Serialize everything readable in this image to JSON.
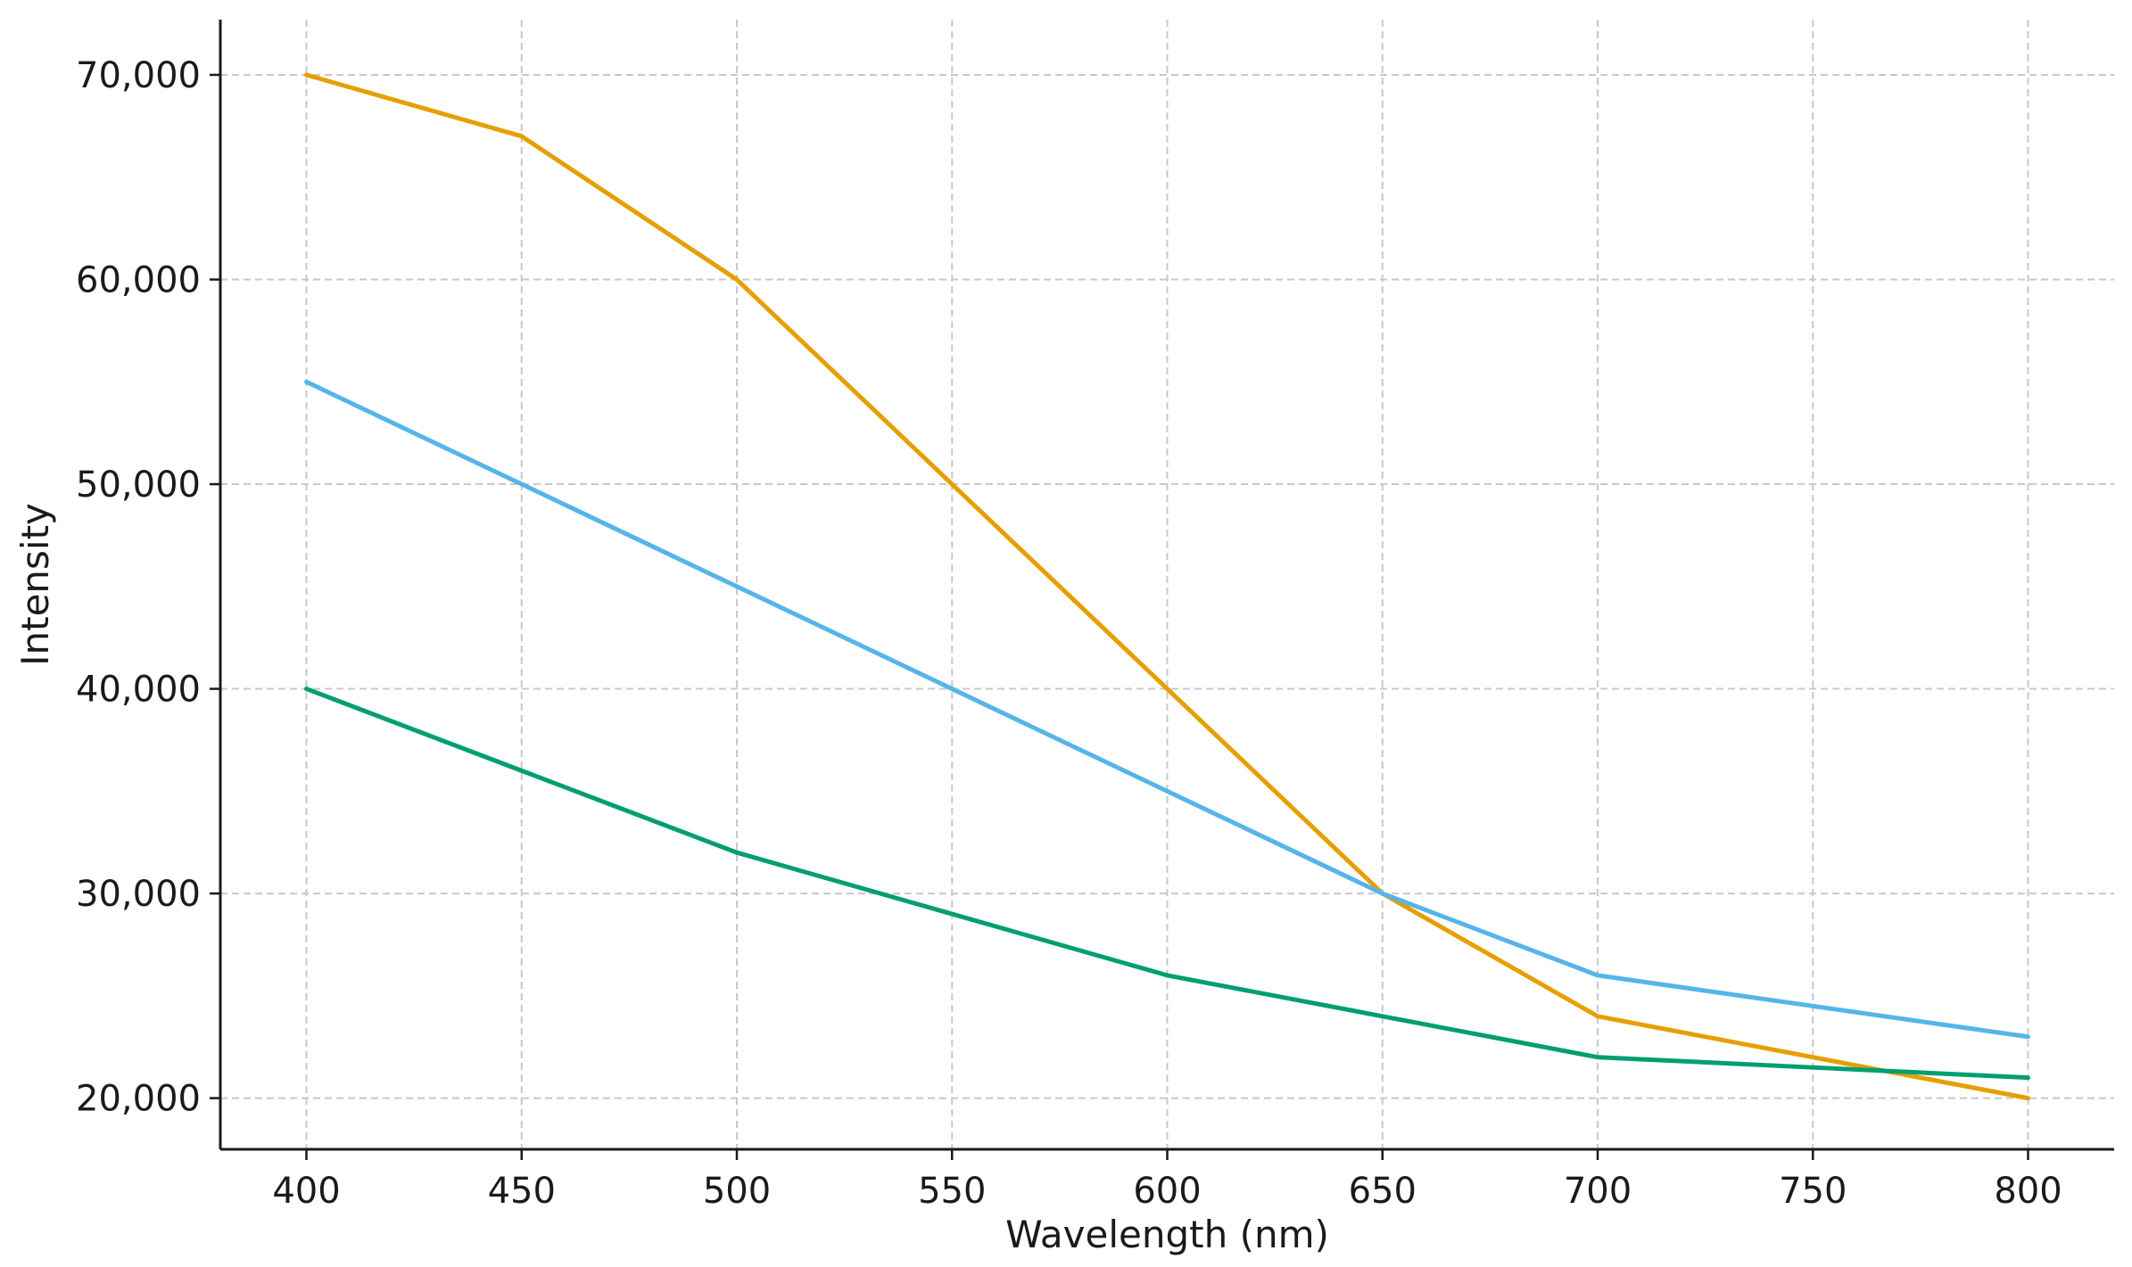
{
  "chart_data": {
    "type": "line",
    "title": "",
    "xlabel": "Wavelength (nm)",
    "ylabel": "Intensity",
    "x": [
      400,
      450,
      500,
      550,
      600,
      650,
      700,
      750,
      800
    ],
    "xlim": [
      380,
      820
    ],
    "ylim": [
      17500,
      72700
    ],
    "xticks": [
      400,
      450,
      500,
      550,
      600,
      650,
      700,
      750,
      800
    ],
    "xtick_labels": [
      "400",
      "450",
      "500",
      "550",
      "600",
      "650",
      "700",
      "750",
      "800"
    ],
    "yticks": [
      20000,
      30000,
      40000,
      50000,
      60000,
      70000
    ],
    "ytick_labels": [
      "20,000",
      "30,000",
      "40,000",
      "50,000",
      "60,000",
      "70,000"
    ],
    "grid": true,
    "legend": "none",
    "series": [
      {
        "color": "#E69F00",
        "values": [
          70000,
          67000,
          60000,
          50000,
          40000,
          30000,
          24000,
          22000,
          20000
        ]
      },
      {
        "color": "#56B4E9",
        "values": [
          55000,
          50000,
          45000,
          40000,
          35000,
          30000,
          26000,
          24500,
          23000
        ]
      },
      {
        "color": "#009E73",
        "values": [
          40000,
          36000,
          32000,
          29000,
          26000,
          24000,
          22000,
          21500,
          21000
        ]
      }
    ]
  }
}
